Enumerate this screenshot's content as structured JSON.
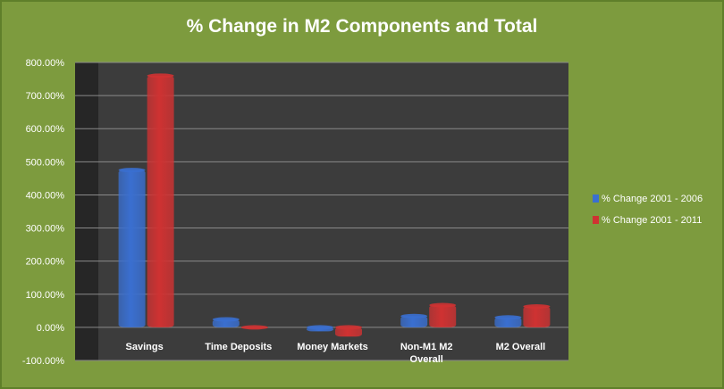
{
  "colors": {
    "background": "#7d9b3e",
    "plot_area": "#3c3c3c",
    "side_wall": "#262626",
    "gridline": "#8a8a8a",
    "series_2006": "#3a6fd0",
    "series_2011": "#cf3232"
  },
  "chart_data": {
    "type": "bar",
    "title": "% Change in M2 Components and Total",
    "categories": [
      "Savings",
      "Time Deposits",
      "Money Markets",
      "Non-M1 M2 Overall",
      "M2 Overall"
    ],
    "category_lines": [
      [
        "Savings"
      ],
      [
        "Time Deposits"
      ],
      [
        "Money Markets"
      ],
      [
        "Non-M1 M2",
        "Overall"
      ],
      [
        "M2 Overall"
      ]
    ],
    "series": [
      {
        "name": "% Change 2001 - 2006",
        "values": [
          475,
          24,
          -12,
          34,
          30
        ],
        "color": "#3a6fd0"
      },
      {
        "name": "% Change 2001 - 2011",
        "values": [
          760,
          -4,
          -28,
          67,
          63
        ],
        "color": "#cf3232"
      }
    ],
    "ylim": [
      -100,
      800
    ],
    "y_ticks": [
      -100,
      0,
      100,
      200,
      300,
      400,
      500,
      600,
      700,
      800
    ],
    "y_tick_labels": [
      "-100.00%",
      "0.00%",
      "100.00%",
      "200.00%",
      "300.00%",
      "400.00%",
      "500.00%",
      "600.00%",
      "700.00%",
      "800.00%"
    ],
    "grid": true,
    "legend_position": "right",
    "xlabel": "",
    "ylabel": ""
  }
}
